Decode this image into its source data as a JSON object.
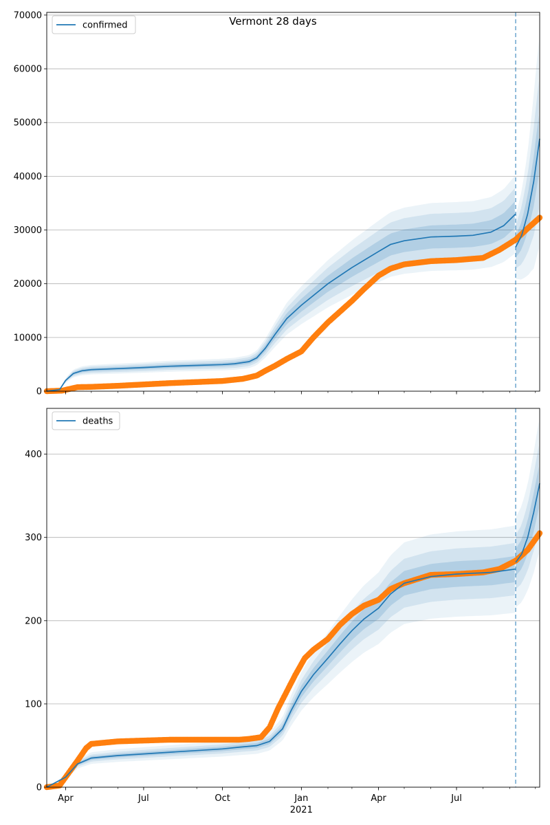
{
  "title": "Vermont 28 days",
  "colors": {
    "model": "#1f77b4",
    "observed": "#ff7f0e",
    "band": "#1f77b4",
    "grid": "#b0b0b0",
    "vline": "#1f77b4"
  },
  "x_axis": {
    "start": "2020-03-10",
    "end": "2021-10-06",
    "major_ticks": [
      {
        "date": "2020-04-01",
        "label": "Apr"
      },
      {
        "date": "2020-07-01",
        "label": "Jul"
      },
      {
        "date": "2020-10-01",
        "label": "Oct"
      },
      {
        "date": "2021-01-01",
        "label": "Jan"
      },
      {
        "date": "2021-04-01",
        "label": "Apr"
      },
      {
        "date": "2021-07-01",
        "label": "Jul"
      }
    ],
    "year_label": {
      "date": "2021-01-01",
      "label": "2021"
    },
    "forecast_start": "2021-09-08"
  },
  "chart_data": [
    {
      "type": "area",
      "panel": "confirmed",
      "legend": [
        "confirmed"
      ],
      "legend_loc": "upper left",
      "grid": true,
      "ylim": [
        0,
        70500
      ],
      "yticks": [
        {
          "value": 0,
          "label": "0"
        },
        {
          "value": 10000,
          "label": "10000"
        },
        {
          "value": 20000,
          "label": "20000"
        },
        {
          "value": 30000,
          "label": "30000"
        },
        {
          "value": 40000,
          "label": "40000"
        },
        {
          "value": 50000,
          "label": "50000"
        },
        {
          "value": 60000,
          "label": "60000"
        },
        {
          "value": 70000,
          "label": "70000"
        }
      ],
      "model_series": {
        "name": "confirmed",
        "x": [
          "2020-03-10",
          "2020-03-25",
          "2020-04-01",
          "2020-04-10",
          "2020-04-20",
          "2020-05-01",
          "2020-06-01",
          "2020-07-01",
          "2020-08-01",
          "2020-09-01",
          "2020-10-01",
          "2020-10-15",
          "2020-11-01",
          "2020-11-10",
          "2020-11-20",
          "2020-12-01",
          "2020-12-15",
          "2021-01-01",
          "2021-02-01",
          "2021-03-01",
          "2021-04-01",
          "2021-04-15",
          "2021-05-01",
          "2021-06-01",
          "2021-07-01",
          "2021-07-20",
          "2021-08-10",
          "2021-08-25",
          "2021-09-08"
        ],
        "y": [
          0,
          300,
          2000,
          3300,
          3800,
          4000,
          4200,
          4400,
          4650,
          4800,
          4950,
          5100,
          5500,
          6200,
          8000,
          10500,
          13500,
          16000,
          20000,
          23000,
          26000,
          27300,
          28000,
          28700,
          28850,
          29000,
          29600,
          30800,
          33000
        ]
      },
      "forecast_series": {
        "x": [
          "2021-09-08",
          "2021-09-15",
          "2021-09-22",
          "2021-09-29",
          "2021-10-06"
        ],
        "y": [
          26800,
          29000,
          33000,
          39000,
          47000
        ]
      },
      "bands": [
        {
          "half_width_rel": 0.075,
          "forecast_half_width_rel": 0.12,
          "opacity": 0.18
        },
        {
          "half_width_rel": 0.15,
          "forecast_half_width_rel": 0.26,
          "opacity": 0.12
        },
        {
          "half_width_rel": 0.22,
          "forecast_half_width_rel": 0.42,
          "opacity": 0.09
        }
      ],
      "observed": {
        "x": [
          "2020-03-10",
          "2020-03-28",
          "2020-04-15",
          "2020-05-01",
          "2020-06-01",
          "2020-07-01",
          "2020-08-01",
          "2020-09-01",
          "2020-10-01",
          "2020-10-25",
          "2020-11-10",
          "2020-11-20",
          "2020-12-01",
          "2020-12-15",
          "2021-01-01",
          "2021-01-15",
          "2021-02-01",
          "2021-02-15",
          "2021-03-01",
          "2021-03-15",
          "2021-04-01",
          "2021-04-15",
          "2021-05-01",
          "2021-06-01",
          "2021-07-01",
          "2021-08-01",
          "2021-08-20",
          "2021-09-08",
          "2021-09-22",
          "2021-10-06"
        ],
        "y": [
          0,
          100,
          750,
          800,
          1000,
          1250,
          1500,
          1700,
          1900,
          2300,
          2900,
          3800,
          4700,
          6000,
          7400,
          10000,
          12800,
          14800,
          16800,
          19000,
          21500,
          22800,
          23600,
          24200,
          24400,
          24800,
          26300,
          28200,
          30300,
          32300
        ]
      }
    },
    {
      "type": "area",
      "panel": "deaths",
      "legend": [
        "deaths"
      ],
      "legend_loc": "upper left",
      "grid": true,
      "ylim": [
        0,
        455
      ],
      "yticks": [
        {
          "value": 0,
          "label": "0"
        },
        {
          "value": 100,
          "label": "100"
        },
        {
          "value": 200,
          "label": "200"
        },
        {
          "value": 300,
          "label": "300"
        },
        {
          "value": 400,
          "label": "400"
        }
      ],
      "model_series": {
        "name": "deaths",
        "x": [
          "2020-03-10",
          "2020-04-01",
          "2020-04-15",
          "2020-05-01",
          "2020-06-01",
          "2020-07-01",
          "2020-08-01",
          "2020-09-01",
          "2020-10-01",
          "2020-10-20",
          "2020-11-10",
          "2020-11-25",
          "2020-12-10",
          "2020-12-20",
          "2021-01-01",
          "2021-01-15",
          "2021-02-01",
          "2021-02-15",
          "2021-03-01",
          "2021-03-15",
          "2021-04-01",
          "2021-04-15",
          "2021-05-01",
          "2021-06-01",
          "2021-07-01",
          "2021-07-20",
          "2021-08-10",
          "2021-09-08"
        ],
        "y": [
          0,
          12,
          28,
          35,
          38,
          40,
          42,
          44,
          46,
          48,
          50,
          55,
          70,
          92,
          115,
          135,
          155,
          172,
          188,
          202,
          215,
          232,
          245,
          253,
          256,
          257,
          258,
          262
        ]
      },
      "forecast_series": {
        "x": [
          "2021-09-08",
          "2021-09-15",
          "2021-09-22",
          "2021-09-29",
          "2021-10-06"
        ],
        "y": [
          270,
          280,
          300,
          330,
          365
        ]
      },
      "bands": [
        {
          "half_width_rel": 0.06,
          "forecast_half_width_rel": 0.07,
          "opacity": 0.18
        },
        {
          "half_width_rel": 0.12,
          "forecast_half_width_rel": 0.14,
          "opacity": 0.12
        },
        {
          "half_width_rel": 0.2,
          "forecast_half_width_rel": 0.22,
          "opacity": 0.09
        }
      ],
      "observed": {
        "x": [
          "2020-03-10",
          "2020-03-25",
          "2020-04-01",
          "2020-04-15",
          "2020-04-25",
          "2020-05-01",
          "2020-06-01",
          "2020-07-01",
          "2020-08-01",
          "2020-09-01",
          "2020-10-01",
          "2020-10-20",
          "2020-11-01",
          "2020-11-15",
          "2020-11-25",
          "2020-12-05",
          "2020-12-15",
          "2020-12-25",
          "2021-01-05",
          "2021-01-15",
          "2021-02-01",
          "2021-02-15",
          "2021-03-01",
          "2021-03-15",
          "2021-04-01",
          "2021-04-15",
          "2021-05-01",
          "2021-06-01",
          "2021-07-01",
          "2021-08-01",
          "2021-08-20",
          "2021-09-08",
          "2021-09-22",
          "2021-10-06"
        ],
        "y": [
          0,
          2,
          12,
          32,
          47,
          52,
          55,
          56,
          57,
          57,
          57,
          57,
          58,
          60,
          72,
          95,
          115,
          135,
          155,
          165,
          178,
          195,
          208,
          218,
          225,
          238,
          245,
          255,
          256,
          258,
          262,
          272,
          285,
          305
        ]
      }
    }
  ]
}
